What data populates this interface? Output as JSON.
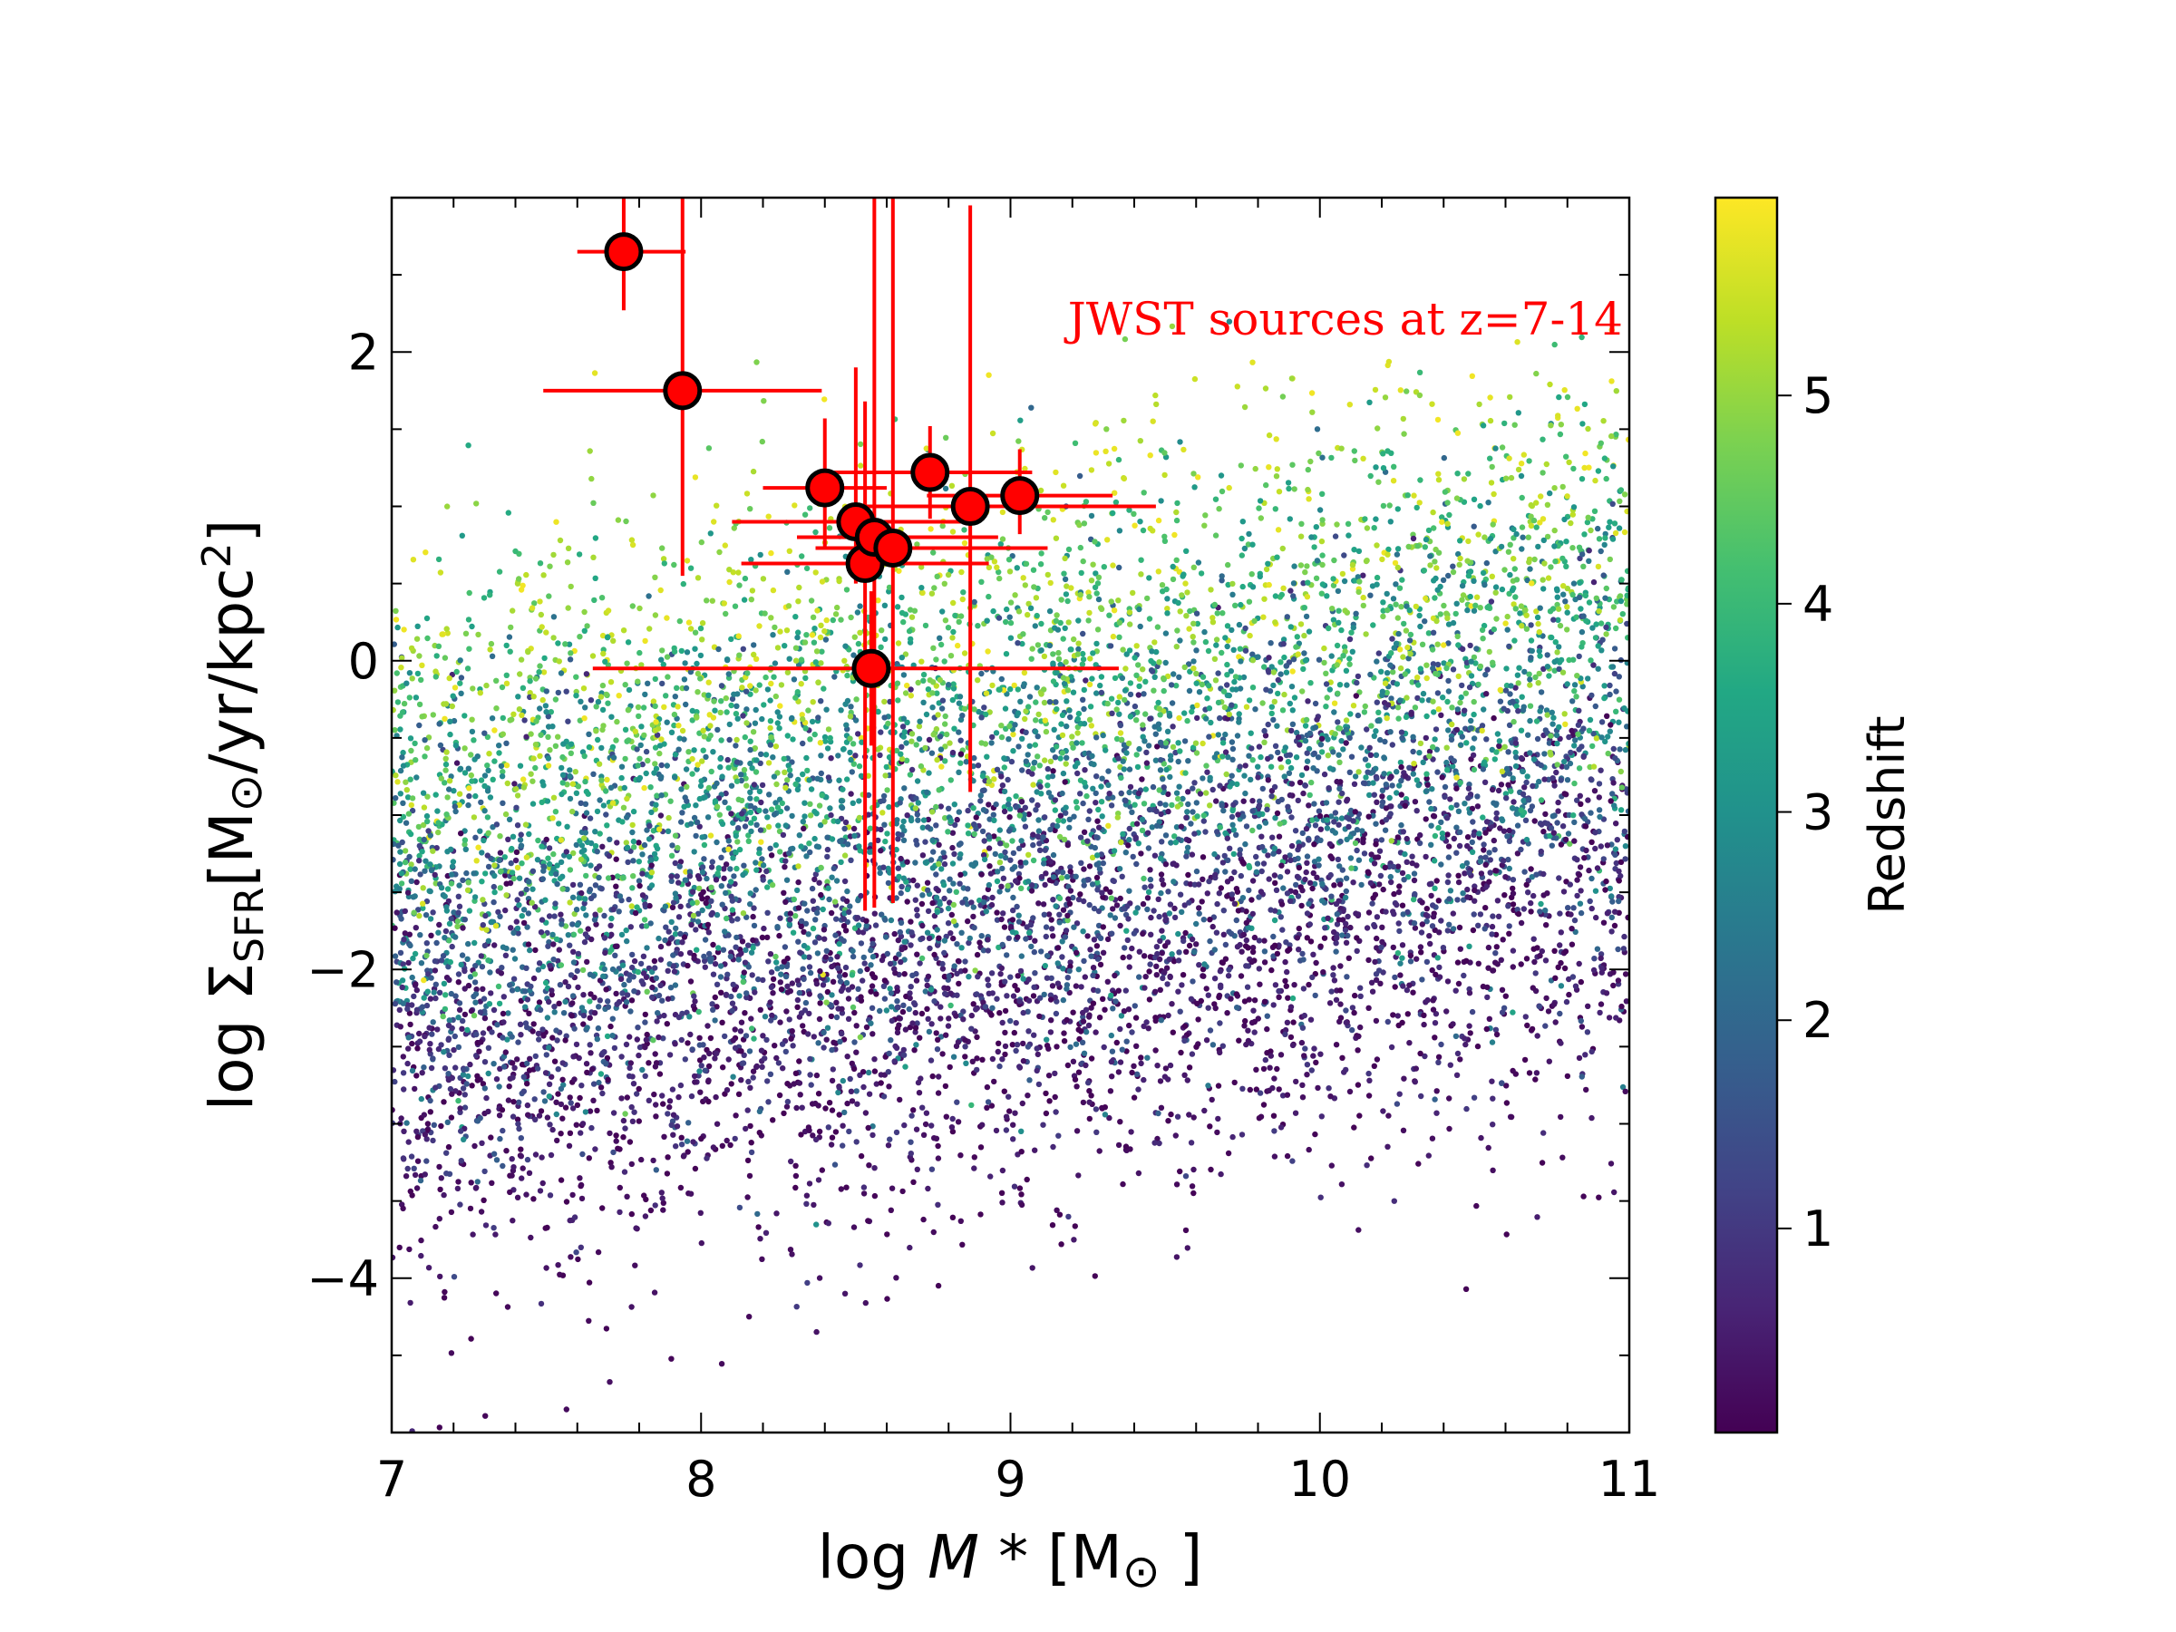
{
  "chart_data": {
    "type": "scatter",
    "xlabel": "log M * [M ⊙ ]",
    "ylabel": "log Σ SFR [M ⊙ /yr/kpc 2 ]",
    "xlim": [
      7,
      11
    ],
    "ylim": [
      -5,
      3
    ],
    "xticks": [
      7,
      8,
      9,
      10,
      11
    ],
    "yticks": [
      -4,
      -2,
      0,
      2
    ],
    "xtick_labels": [
      "7",
      "8",
      "9",
      "10",
      "11"
    ],
    "ytick_labels": [
      "−4",
      "−2",
      "0",
      "2"
    ],
    "grid": false,
    "annotation": "JWST sources at z=7-14",
    "annotation_color": "#ff0000",
    "colorbar": {
      "label": "Redshift",
      "colormap": "viridis",
      "range": [
        0.02,
        5.95
      ],
      "ticks": [
        1,
        2,
        3,
        4,
        5
      ],
      "tick_labels": [
        "1",
        "2",
        "3",
        "4",
        "5"
      ]
    },
    "background_population": {
      "description": "",
      "redshift_trend": [
        {
          "x": 7.0,
          "y_center_low_z": -3.0,
          "y_center_high_z": 0.3
        },
        {
          "x": 8.0,
          "y_center_low_z": -2.8,
          "y_center_high_z": 0.6
        },
        {
          "x": 9.0,
          "y_center_low_z": -2.3,
          "y_center_high_z": 0.7
        },
        {
          "x": 10.0,
          "y_center_low_z": -1.9,
          "y_center_high_z": 0.8
        },
        {
          "x": 11.0,
          "y_center_low_z": -1.7,
          "y_center_high_z": 0.8
        }
      ]
    },
    "series": [
      {
        "marker": "circle",
        "color": "#ff0000",
        "edgecolor": "#000000",
        "points": [
          {
            "x": 7.75,
            "y": 2.65,
            "xerr": [
              0.15,
              0.2
            ],
            "yerr": [
              0.38,
              0.55
            ]
          },
          {
            "x": 7.94,
            "y": 1.75,
            "xerr": [
              0.45,
              0.45
            ],
            "yerr": [
              1.2,
              1.25
            ]
          },
          {
            "x": 8.4,
            "y": 1.12,
            "xerr": [
              0.2,
              0.2
            ],
            "yerr": [
              0.4,
              0.45
            ]
          },
          {
            "x": 8.5,
            "y": 0.9,
            "xerr": [
              0.4,
              0.4
            ],
            "yerr": [
              0.4,
              1.0
            ]
          },
          {
            "x": 8.53,
            "y": 0.63,
            "xerr": [
              0.4,
              0.4
            ],
            "yerr": [
              2.25,
              1.05
            ]
          },
          {
            "x": 8.56,
            "y": 0.8,
            "xerr": [
              0.25,
              0.4
            ],
            "yerr": [
              2.4,
              2.5
            ]
          },
          {
            "x": 8.62,
            "y": 0.73,
            "xerr": [
              0.25,
              0.5
            ],
            "yerr": [
              2.3,
              2.3
            ]
          },
          {
            "x": 8.55,
            "y": -0.05,
            "xerr": [
              0.9,
              0.8
            ],
            "yerr": [
              0.5,
              0.5
            ]
          },
          {
            "x": 8.74,
            "y": 1.22,
            "xerr": [
              0.33,
              0.33
            ],
            "yerr": [
              0.3,
              0.3
            ]
          },
          {
            "x": 8.87,
            "y": 1.0,
            "xerr": [
              0.4,
              0.6
            ],
            "yerr": [
              1.85,
              1.95
            ]
          },
          {
            "x": 9.03,
            "y": 1.07,
            "xerr": [
              0.3,
              0.3
            ],
            "yerr": [
              0.25,
              0.3
            ]
          }
        ]
      }
    ]
  }
}
